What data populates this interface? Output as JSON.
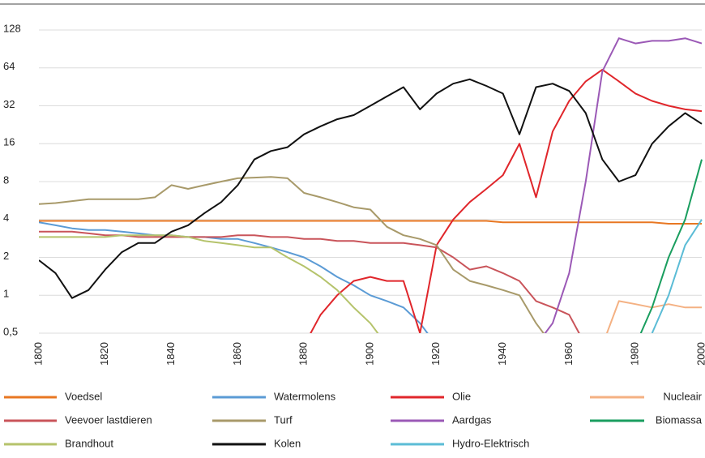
{
  "chart_data": {
    "type": "line",
    "yscale": "log",
    "grid": true,
    "x": [
      1800,
      1805,
      1810,
      1815,
      1820,
      1825,
      1830,
      1835,
      1840,
      1845,
      1850,
      1855,
      1860,
      1865,
      1870,
      1875,
      1880,
      1885,
      1890,
      1895,
      1900,
      1905,
      1910,
      1915,
      1920,
      1925,
      1930,
      1935,
      1940,
      1945,
      1950,
      1955,
      1960,
      1965,
      1970,
      1975,
      1980,
      1985,
      1990,
      1995,
      2000
    ],
    "xlim": [
      1800,
      2000
    ],
    "xticks": [
      1800,
      1820,
      1840,
      1860,
      1880,
      1900,
      1920,
      1940,
      1960,
      1980,
      2000
    ],
    "ylim": [
      0.5,
      128
    ],
    "yticks": [
      {
        "value": 0.5,
        "label": "0,5"
      },
      1,
      2,
      4,
      8,
      16,
      32,
      64,
      128
    ],
    "series": [
      {
        "name": "Voedsel",
        "color": "#e87722",
        "values": [
          3.9,
          3.9,
          3.9,
          3.9,
          3.9,
          3.9,
          3.9,
          3.9,
          3.9,
          3.9,
          3.9,
          3.9,
          3.9,
          3.9,
          3.9,
          3.9,
          3.9,
          3.9,
          3.9,
          3.9,
          3.9,
          3.9,
          3.9,
          3.9,
          3.9,
          3.9,
          3.9,
          3.9,
          3.8,
          3.8,
          3.8,
          3.8,
          3.8,
          3.8,
          3.8,
          3.8,
          3.8,
          3.8,
          3.7,
          3.7,
          3.7
        ]
      },
      {
        "name": "Watermolens",
        "color": "#5b9bd5",
        "values": [
          3.8,
          3.6,
          3.4,
          3.3,
          3.3,
          3.2,
          3.1,
          3.0,
          3.0,
          2.9,
          2.9,
          2.8,
          2.8,
          2.6,
          2.4,
          2.2,
          2.0,
          1.7,
          1.4,
          1.2,
          1.0,
          0.9,
          0.8,
          0.6,
          0.4,
          null,
          null,
          null,
          null,
          null,
          null,
          null,
          null,
          null,
          null,
          null,
          null,
          null,
          null,
          null,
          null
        ]
      },
      {
        "name": "Olie",
        "color": "#e0262b",
        "values": [
          null,
          null,
          null,
          null,
          null,
          null,
          null,
          null,
          null,
          null,
          null,
          null,
          null,
          null,
          null,
          null,
          0.4,
          0.7,
          1.0,
          1.3,
          1.4,
          1.3,
          1.3,
          0.5,
          2.5,
          4,
          5.5,
          7,
          9,
          16,
          6,
          20,
          35,
          50,
          62,
          50,
          40,
          35,
          32,
          30,
          29
        ]
      },
      {
        "name": "Nucleair",
        "color": "#f4b183",
        "values": [
          null,
          null,
          null,
          null,
          null,
          null,
          null,
          null,
          null,
          null,
          null,
          null,
          null,
          null,
          null,
          null,
          null,
          null,
          null,
          null,
          null,
          null,
          null,
          null,
          null,
          null,
          null,
          null,
          null,
          null,
          null,
          null,
          null,
          null,
          0.4,
          0.9,
          0.85,
          0.8,
          0.85,
          0.8,
          0.8
        ]
      },
      {
        "name": "Veevoer lastdieren",
        "color": "#c9545a",
        "values": [
          3.2,
          3.2,
          3.2,
          3.1,
          3.0,
          3.0,
          2.9,
          2.9,
          2.9,
          2.9,
          2.9,
          2.9,
          3.0,
          3.0,
          2.9,
          2.9,
          2.8,
          2.8,
          2.7,
          2.7,
          2.6,
          2.6,
          2.6,
          2.5,
          2.4,
          2.0,
          1.6,
          1.7,
          1.5,
          1.3,
          0.9,
          0.8,
          0.7,
          0.4,
          null,
          null,
          null,
          null,
          null,
          null,
          null
        ]
      },
      {
        "name": "Turf",
        "color": "#a89a6a",
        "values": [
          5.3,
          5.4,
          5.6,
          5.8,
          5.8,
          5.8,
          5.8,
          6.0,
          7.5,
          7.0,
          7.5,
          8.0,
          8.5,
          8.6,
          8.7,
          8.5,
          6.5,
          6.0,
          5.5,
          5.0,
          4.8,
          3.5,
          3.0,
          2.8,
          2.5,
          1.6,
          1.3,
          1.2,
          1.1,
          1.0,
          0.6,
          0.4,
          null,
          null,
          null,
          null,
          null,
          null,
          null,
          null,
          null
        ]
      },
      {
        "name": "Aardgas",
        "color": "#9b59b6",
        "values": [
          null,
          null,
          null,
          null,
          null,
          null,
          null,
          null,
          null,
          null,
          null,
          null,
          null,
          null,
          null,
          null,
          null,
          null,
          null,
          null,
          null,
          null,
          null,
          null,
          null,
          null,
          null,
          null,
          null,
          null,
          0.4,
          0.6,
          1.5,
          8,
          60,
          110,
          100,
          105,
          105,
          110,
          100
        ]
      },
      {
        "name": "Biomassa",
        "color": "#1a9e5f",
        "values": [
          null,
          null,
          null,
          null,
          null,
          null,
          null,
          null,
          null,
          null,
          null,
          null,
          null,
          null,
          null,
          null,
          null,
          null,
          null,
          null,
          null,
          null,
          null,
          null,
          null,
          null,
          null,
          null,
          null,
          null,
          null,
          null,
          null,
          null,
          null,
          null,
          0.4,
          0.8,
          2,
          4,
          12
        ]
      },
      {
        "name": "Brandhout",
        "color": "#b5c36b",
        "values": [
          2.9,
          2.9,
          2.9,
          2.9,
          2.9,
          3.0,
          3.0,
          3.0,
          3.0,
          2.9,
          2.7,
          2.6,
          2.5,
          2.4,
          2.4,
          2.0,
          1.7,
          1.4,
          1.1,
          0.8,
          0.6,
          0.4,
          null,
          null,
          null,
          null,
          null,
          null,
          null,
          null,
          null,
          null,
          null,
          null,
          null,
          null,
          null,
          null,
          null,
          null,
          null
        ]
      },
      {
        "name": "Kolen",
        "color": "#111111",
        "values": [
          1.9,
          1.5,
          0.95,
          1.1,
          1.6,
          2.2,
          2.6,
          2.6,
          3.2,
          3.6,
          4.5,
          5.5,
          7.5,
          12,
          14,
          15,
          19,
          22,
          25,
          27,
          32,
          38,
          45,
          30,
          40,
          48,
          52,
          46,
          40,
          19,
          45,
          48,
          42,
          28,
          12,
          8,
          9,
          16,
          22,
          28,
          23
        ]
      },
      {
        "name": "Hydro-Elektrisch",
        "color": "#5bbcd6",
        "values": [
          null,
          null,
          null,
          null,
          null,
          null,
          null,
          null,
          null,
          null,
          null,
          null,
          null,
          null,
          null,
          null,
          null,
          null,
          null,
          null,
          null,
          null,
          null,
          null,
          null,
          null,
          null,
          null,
          null,
          null,
          null,
          null,
          null,
          null,
          null,
          null,
          null,
          0.5,
          1.0,
          2.5,
          4
        ]
      }
    ]
  }
}
